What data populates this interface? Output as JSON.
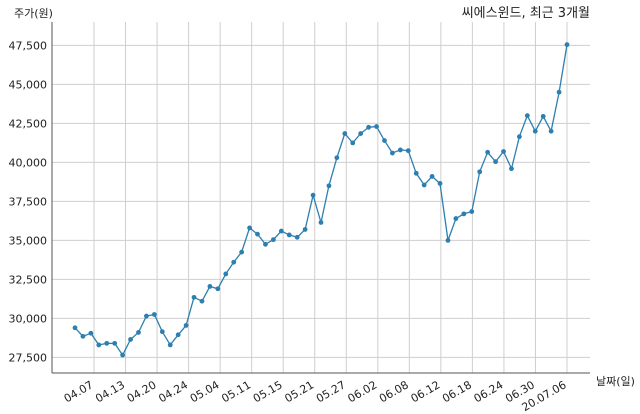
{
  "chart_data": {
    "type": "line",
    "title": "씨에스윈드, 최근 3개월",
    "ylabel": "주가(원)",
    "xlabel": "날짜(일)",
    "ylim": [
      26500,
      49000
    ],
    "yticks": [
      27500,
      30000,
      32500,
      35000,
      37500,
      40000,
      42500,
      45000,
      47500
    ],
    "ytick_labels": [
      "27,500",
      "30,000",
      "32,500",
      "35,000",
      "37,500",
      "40,000",
      "42,500",
      "45,000",
      "47,500"
    ],
    "xtick_labels": [
      "04.07",
      "04.13",
      "04.20",
      "04.24",
      "05.04",
      "05.11",
      "05.15",
      "05.21",
      "05.27",
      "06.02",
      "06.08",
      "06.12",
      "06.18",
      "06.24",
      "06.30",
      "20.07.06"
    ],
    "grid": true,
    "series": [
      {
        "color": "#2d7fb0",
        "values": [
          29400,
          28850,
          29050,
          28300,
          28400,
          28400,
          27650,
          28650,
          29100,
          30150,
          30250,
          29150,
          28300,
          28950,
          29550,
          31350,
          31100,
          32050,
          31900,
          32850,
          33600,
          34250,
          35800,
          35400,
          34750,
          35050,
          35600,
          35350,
          35200,
          35700,
          37900,
          36150,
          38500,
          40300,
          41850,
          41250,
          41850,
          42250,
          42300,
          41400,
          40600,
          40800,
          40750,
          39300,
          38550,
          39100,
          38650,
          35000,
          36400,
          36700,
          36850,
          39400,
          40650,
          40050,
          40700,
          39600,
          41650,
          43000,
          42000,
          42950,
          42000,
          44500,
          47550
        ]
      }
    ]
  }
}
